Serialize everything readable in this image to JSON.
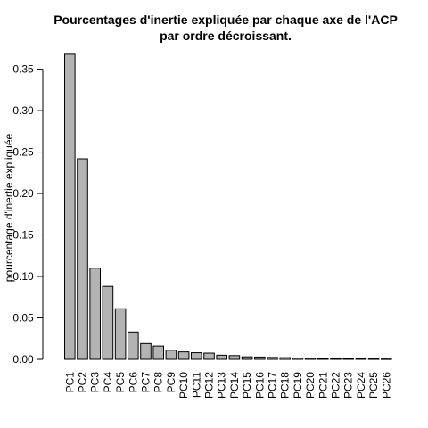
{
  "chart_data": {
    "type": "bar",
    "title_lines": [
      "Pourcentages d'inertie expliquée par chaque axe de l'ACP",
      "par ordre décroissant."
    ],
    "xlabel": "",
    "ylabel": "pourcentage d'inertie expliquée",
    "ylim": [
      0,
      0.37
    ],
    "yticks": [
      "0.00",
      "0.05",
      "0.10",
      "0.15",
      "0.20",
      "0.25",
      "0.30",
      "0.35"
    ],
    "categories": [
      "PC1",
      "PC2",
      "PC3",
      "PC4",
      "PC5",
      "PC6",
      "PC7",
      "PC8",
      "PC9",
      "PC10",
      "PC11",
      "PC12",
      "PC13",
      "PC14",
      "PC15",
      "PC16",
      "PC17",
      "PC18",
      "PC19",
      "PC20",
      "PC21",
      "PC22",
      "PC23",
      "PC24",
      "PC25",
      "PC26"
    ],
    "values": [
      0.368,
      0.242,
      0.11,
      0.088,
      0.061,
      0.033,
      0.019,
      0.016,
      0.011,
      0.009,
      0.008,
      0.0075,
      0.005,
      0.0045,
      0.003,
      0.0028,
      0.0023,
      0.002,
      0.0015,
      0.0013,
      0.001,
      0.0009,
      0.0007,
      0.0006,
      0.0005,
      0.0004
    ],
    "colors": {
      "bar_fill": "#b3b3b3",
      "bar_stroke": "#000000"
    }
  }
}
